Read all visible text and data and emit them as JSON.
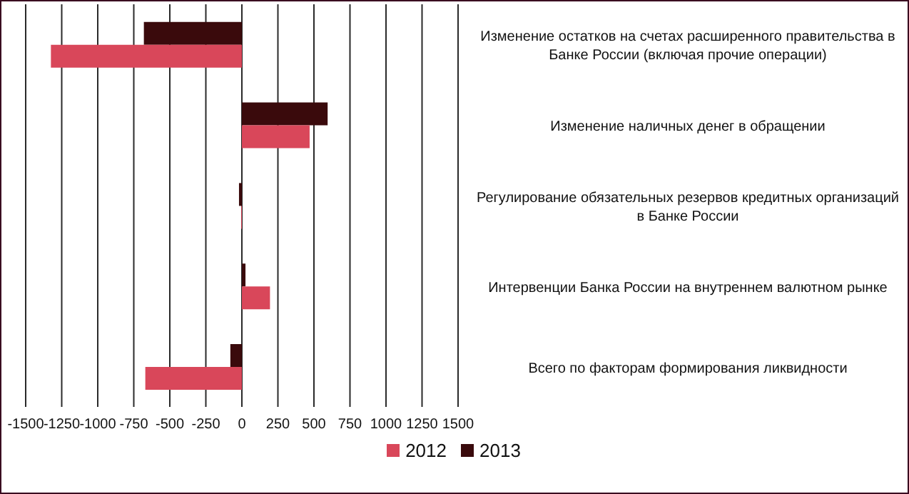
{
  "chart_data": {
    "type": "bar",
    "orientation": "horizontal",
    "categories": [
      "Изменение остатков на счетах расширенного правительства в Банке России (включая прочие операции)",
      "Изменение наличных денег в обращении",
      "Регулирование обязательных резервов кредитных организаций в Банке России",
      "Интервенции Банка России на внутреннем валютном рынке",
      "Всего по факторам формирования ликвидности"
    ],
    "series": [
      {
        "name": "2013",
        "color": "#3a0a0c",
        "values": [
          -680,
          595,
          -20,
          25,
          -80
        ]
      },
      {
        "name": "2012",
        "color": "#d9475a",
        "values": [
          -1325,
          470,
          -5,
          195,
          -670
        ]
      }
    ],
    "xlim": [
      -1500,
      1500
    ],
    "xticks": [
      -1500,
      -1250,
      -1000,
      -750,
      -500,
      -250,
      0,
      250,
      500,
      750,
      1000,
      1250,
      1500
    ],
    "grid": "x",
    "legend": "bottom"
  }
}
